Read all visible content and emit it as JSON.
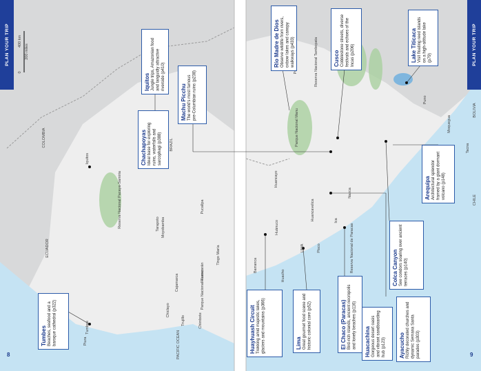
{
  "left_page": {
    "tab": "PLAN YOUR TRIP",
    "page_number": "8",
    "callouts": [
      {
        "title": "Iquitos",
        "text": "Jungle trips, Amazonian food and languidly attractive riverside (p410)"
      },
      {
        "title": "Chachapoyas",
        "text": "Ideal base for exploring ruins, waterfalls and sarcophagi (p388)"
      },
      {
        "title": "Tumbes",
        "text": "Beaches, seafood and a baroque cathedral (p322)"
      }
    ],
    "scale": {
      "zero": "0",
      "miles": "200 miles",
      "km": "400 km"
    },
    "map_labels": [
      "COLOMBIA",
      "ECUADOR",
      "BRAZIL",
      "Reserva Nacional Pacaya-Samiria",
      "Iquitos",
      "Moyobamba",
      "Tarapoto",
      "Cajamarca",
      "Trujillo",
      "Chiclayo",
      "Piura",
      "Tumbes",
      "PACIFIC OCEAN",
      "Chimbote",
      "Huaraz",
      "Pucallpa",
      "Tingo María",
      "Parque Nacional Huascarán"
    ]
  },
  "right_page": {
    "tab": "PLAN YOUR TRIP",
    "page_number": "9",
    "callouts": [
      {
        "title": "Machu Picchu",
        "text": "The world's most famous pre-Columbian ruins (p238)"
      },
      {
        "title": "Río Madre de Dios",
        "text": "Observe wildlife from rivers, oxbow lakes and canopy walkways (p433)"
      },
      {
        "title": "Cusco",
        "text": "Cobblestone streets, diverse festivals and echoes of the Incas (p206)"
      },
      {
        "title": "Lake Titicaca",
        "text": "Visit floating reed islands on a high-altitude lake (p79)"
      },
      {
        "title": "Arequipa",
        "text": "Architectural splendor framed by a giant dormant volcano (p148)"
      },
      {
        "title": "Colca Canyon",
        "text": "See condors soaring over ancient terraces (p140)"
      },
      {
        "title": "Ayacucho",
        "text": "Richly decorated churches and dynamic Semana Santa parades (p303)"
      },
      {
        "title": "Huacachina",
        "text": "Gorgeous desert oasis and vibrant sandboarding hub (p123)"
      },
      {
        "title": "El Chaco (Paracas)",
        "text": "Bird-rich islands, ancient necropolis and lonely beaches (p116)"
      },
      {
        "title": "Lima",
        "text": "Great gourmet food scene and historic colonial core (p52)"
      },
      {
        "title": "Huayhuash Circuit",
        "text": "Trekking amid majestic lakes, glaciers and mountains (p366)"
      }
    ],
    "map_labels": [
      "BOLIVIA",
      "CHILE",
      "LIMA",
      "Huánuco",
      "Huancayo",
      "Huancavelica",
      "Pisco",
      "Ica",
      "Nazca",
      "Puerto Maldonado",
      "Parque Nacional Manu",
      "Reserva Nacional Tambopata",
      "Puno",
      "Moquegua",
      "Tacna",
      "Reserva Nacional de Paracas",
      "Huacho",
      "Barranca"
    ]
  }
}
